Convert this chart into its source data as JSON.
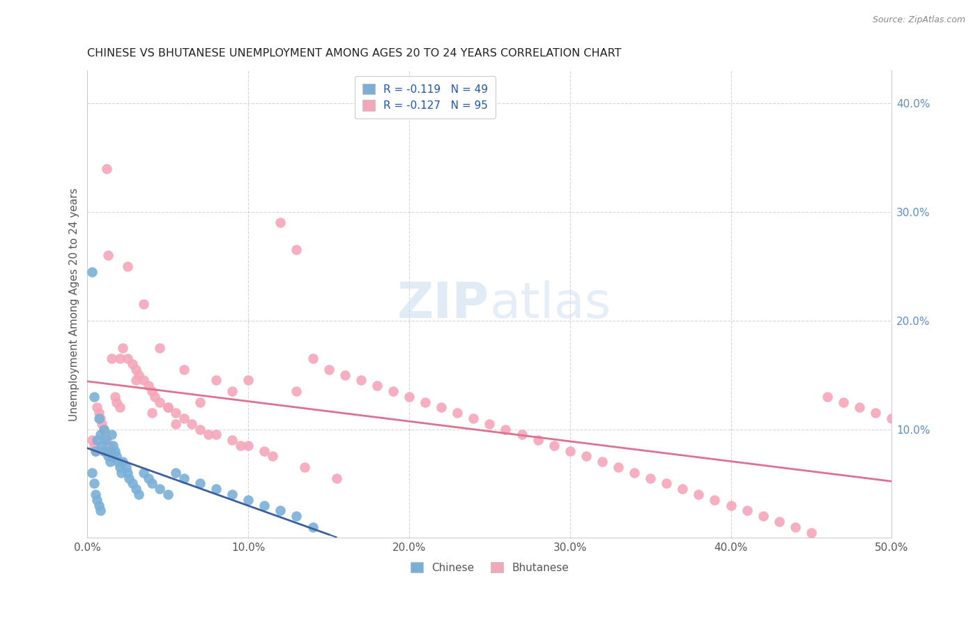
{
  "title": "CHINESE VS BHUTANESE UNEMPLOYMENT AMONG AGES 20 TO 24 YEARS CORRELATION CHART",
  "source": "Source: ZipAtlas.com",
  "ylabel": "Unemployment Among Ages 20 to 24 years",
  "xlim": [
    0.0,
    0.5
  ],
  "ylim": [
    -0.02,
    0.43
  ],
  "plot_ylim": [
    0.0,
    0.43
  ],
  "x_ticks": [
    0.0,
    0.1,
    0.2,
    0.3,
    0.4,
    0.5
  ],
  "x_tick_labels": [
    "0.0%",
    "10.0%",
    "20.0%",
    "30.0%",
    "40.0%",
    "50.0%"
  ],
  "y_ticks_right": [
    0.1,
    0.2,
    0.3,
    0.4
  ],
  "y_tick_labels_right": [
    "10.0%",
    "20.0%",
    "30.0%",
    "40.0%"
  ],
  "watermark_zip": "ZIP",
  "watermark_atlas": "atlas",
  "chinese_color": "#7ab0d8",
  "bhutanese_color": "#f4a7b9",
  "chinese_trend_color": "#3a5fa0",
  "bhutanese_trend_color": "#e07090",
  "background_color": "#ffffff",
  "grid_color": "#cccccc",
  "chinese_x": [
    0.003,
    0.004,
    0.005,
    0.006,
    0.007,
    0.008,
    0.009,
    0.01,
    0.01,
    0.011,
    0.012,
    0.013,
    0.014,
    0.015,
    0.015,
    0.016,
    0.017,
    0.018,
    0.019,
    0.02,
    0.021,
    0.022,
    0.024,
    0.025,
    0.026,
    0.028,
    0.03,
    0.032,
    0.035,
    0.038,
    0.04,
    0.045,
    0.05,
    0.055,
    0.06,
    0.07,
    0.08,
    0.09,
    0.1,
    0.11,
    0.12,
    0.13,
    0.14,
    0.003,
    0.004,
    0.005,
    0.006,
    0.007,
    0.008
  ],
  "chinese_y": [
    0.245,
    0.13,
    0.08,
    0.09,
    0.11,
    0.095,
    0.085,
    0.1,
    0.08,
    0.09,
    0.08,
    0.075,
    0.07,
    0.095,
    0.075,
    0.085,
    0.08,
    0.075,
    0.07,
    0.065,
    0.06,
    0.07,
    0.065,
    0.06,
    0.055,
    0.05,
    0.045,
    0.04,
    0.06,
    0.055,
    0.05,
    0.045,
    0.04,
    0.06,
    0.055,
    0.05,
    0.045,
    0.04,
    0.035,
    0.03,
    0.025,
    0.02,
    0.01,
    0.06,
    0.05,
    0.04,
    0.035,
    0.03,
    0.025
  ],
  "bhutanese_x": [
    0.003,
    0.004,
    0.005,
    0.006,
    0.007,
    0.008,
    0.009,
    0.01,
    0.011,
    0.012,
    0.013,
    0.014,
    0.015,
    0.017,
    0.018,
    0.02,
    0.022,
    0.025,
    0.028,
    0.03,
    0.032,
    0.035,
    0.038,
    0.04,
    0.042,
    0.045,
    0.05,
    0.055,
    0.06,
    0.065,
    0.07,
    0.08,
    0.09,
    0.1,
    0.11,
    0.12,
    0.13,
    0.14,
    0.15,
    0.16,
    0.17,
    0.18,
    0.19,
    0.2,
    0.21,
    0.22,
    0.23,
    0.24,
    0.25,
    0.26,
    0.27,
    0.28,
    0.29,
    0.3,
    0.31,
    0.32,
    0.33,
    0.34,
    0.35,
    0.36,
    0.37,
    0.38,
    0.39,
    0.4,
    0.41,
    0.42,
    0.43,
    0.44,
    0.45,
    0.46,
    0.47,
    0.48,
    0.49,
    0.5,
    0.012,
    0.025,
    0.035,
    0.015,
    0.02,
    0.03,
    0.045,
    0.06,
    0.08,
    0.1,
    0.13,
    0.09,
    0.07,
    0.05,
    0.04,
    0.055,
    0.075,
    0.095,
    0.115,
    0.135,
    0.155
  ],
  "bhutanese_y": [
    0.09,
    0.085,
    0.08,
    0.12,
    0.115,
    0.11,
    0.105,
    0.1,
    0.095,
    0.09,
    0.26,
    0.085,
    0.08,
    0.13,
    0.125,
    0.12,
    0.175,
    0.165,
    0.16,
    0.155,
    0.15,
    0.145,
    0.14,
    0.135,
    0.13,
    0.125,
    0.12,
    0.115,
    0.11,
    0.105,
    0.1,
    0.095,
    0.09,
    0.085,
    0.08,
    0.29,
    0.265,
    0.165,
    0.155,
    0.15,
    0.145,
    0.14,
    0.135,
    0.13,
    0.125,
    0.12,
    0.115,
    0.11,
    0.105,
    0.1,
    0.095,
    0.09,
    0.085,
    0.08,
    0.075,
    0.07,
    0.065,
    0.06,
    0.055,
    0.05,
    0.045,
    0.04,
    0.035,
    0.03,
    0.025,
    0.02,
    0.015,
    0.01,
    0.005,
    0.13,
    0.125,
    0.12,
    0.115,
    0.11,
    0.34,
    0.25,
    0.215,
    0.165,
    0.165,
    0.145,
    0.175,
    0.155,
    0.145,
    0.145,
    0.135,
    0.135,
    0.125,
    0.12,
    0.115,
    0.105,
    0.095,
    0.085,
    0.075,
    0.065,
    0.055
  ]
}
